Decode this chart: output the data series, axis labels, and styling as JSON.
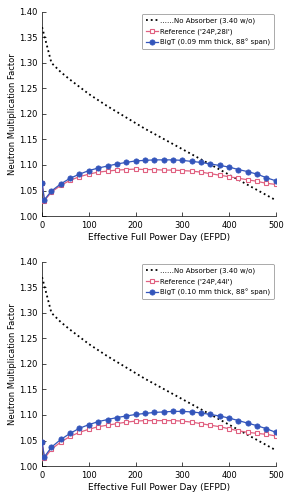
{
  "subplot1": {
    "no_absorber_x": [
      0,
      20,
      40,
      60,
      80,
      100,
      120,
      140,
      160,
      180,
      200,
      220,
      240,
      260,
      280,
      300,
      320,
      340,
      360,
      380,
      400,
      420,
      440,
      460,
      480,
      500
    ],
    "no_absorber_y": [
      1.37,
      1.3,
      1.282,
      1.267,
      1.253,
      1.239,
      1.227,
      1.215,
      1.204,
      1.193,
      1.182,
      1.171,
      1.161,
      1.151,
      1.141,
      1.131,
      1.121,
      1.111,
      1.101,
      1.091,
      1.081,
      1.071,
      1.061,
      1.051,
      1.041,
      1.031
    ],
    "reference_x": [
      0,
      5,
      20,
      40,
      60,
      80,
      100,
      120,
      140,
      160,
      180,
      200,
      220,
      240,
      260,
      280,
      300,
      320,
      340,
      360,
      380,
      400,
      420,
      440,
      460,
      480,
      500
    ],
    "reference_y": [
      1.065,
      1.03,
      1.047,
      1.06,
      1.07,
      1.077,
      1.082,
      1.086,
      1.088,
      1.09,
      1.091,
      1.092,
      1.091,
      1.091,
      1.09,
      1.09,
      1.089,
      1.088,
      1.086,
      1.083,
      1.08,
      1.077,
      1.074,
      1.071,
      1.068,
      1.064,
      1.062
    ],
    "bigt_x": [
      0,
      5,
      20,
      40,
      60,
      80,
      100,
      120,
      140,
      160,
      180,
      200,
      220,
      240,
      260,
      280,
      300,
      320,
      340,
      360,
      380,
      400,
      420,
      440,
      460,
      480,
      500
    ],
    "bigt_y": [
      1.065,
      1.032,
      1.049,
      1.063,
      1.074,
      1.082,
      1.089,
      1.094,
      1.098,
      1.102,
      1.105,
      1.108,
      1.109,
      1.11,
      1.11,
      1.11,
      1.109,
      1.107,
      1.105,
      1.102,
      1.099,
      1.096,
      1.091,
      1.087,
      1.082,
      1.075,
      1.069
    ],
    "ref_label": "Reference ('24P,28I')",
    "bigt_label": "BigT (0.09 mm thick, 88° span)"
  },
  "subplot2": {
    "no_absorber_x": [
      0,
      20,
      40,
      60,
      80,
      100,
      120,
      140,
      160,
      180,
      200,
      220,
      240,
      260,
      280,
      300,
      320,
      340,
      360,
      380,
      400,
      420,
      440,
      460,
      480,
      500
    ],
    "no_absorber_y": [
      1.37,
      1.3,
      1.282,
      1.267,
      1.253,
      1.239,
      1.227,
      1.215,
      1.204,
      1.193,
      1.182,
      1.171,
      1.161,
      1.151,
      1.141,
      1.131,
      1.121,
      1.111,
      1.101,
      1.091,
      1.081,
      1.071,
      1.061,
      1.051,
      1.041,
      1.031
    ],
    "reference_x": [
      0,
      5,
      20,
      40,
      60,
      80,
      100,
      120,
      140,
      160,
      180,
      200,
      220,
      240,
      260,
      280,
      300,
      320,
      340,
      360,
      380,
      400,
      420,
      440,
      460,
      480,
      500
    ],
    "reference_y": [
      1.047,
      1.015,
      1.033,
      1.047,
      1.058,
      1.066,
      1.072,
      1.077,
      1.08,
      1.083,
      1.086,
      1.088,
      1.089,
      1.089,
      1.089,
      1.089,
      1.088,
      1.086,
      1.083,
      1.08,
      1.077,
      1.073,
      1.069,
      1.066,
      1.064,
      1.062,
      1.059
    ],
    "bigt_x": [
      0,
      5,
      20,
      40,
      60,
      80,
      100,
      120,
      140,
      160,
      180,
      200,
      220,
      240,
      260,
      280,
      300,
      320,
      340,
      360,
      380,
      400,
      420,
      440,
      460,
      480,
      500
    ],
    "bigt_y": [
      1.047,
      1.018,
      1.037,
      1.052,
      1.064,
      1.074,
      1.081,
      1.087,
      1.091,
      1.095,
      1.098,
      1.101,
      1.103,
      1.105,
      1.106,
      1.107,
      1.107,
      1.106,
      1.104,
      1.101,
      1.098,
      1.094,
      1.089,
      1.084,
      1.079,
      1.073,
      1.066
    ],
    "ref_label": "Reference ('24P,44I')",
    "bigt_label": "BigT (0.10 mm thick, 88° span)"
  },
  "no_absorber_label": "No Absorber (3.40 w/o)",
  "ylabel": "Neutron Multiplication Factor",
  "xlabel": "Effective Full Power Day (EFPD)",
  "xlim": [
    0,
    500
  ],
  "ylim": [
    1.0,
    1.4
  ],
  "yticks": [
    1.0,
    1.05,
    1.1,
    1.15,
    1.2,
    1.25,
    1.3,
    1.35,
    1.4
  ],
  "xticks": [
    0,
    100,
    200,
    300,
    400,
    500
  ],
  "ref_color": "#e06080",
  "bigt_color": "#3355bb",
  "no_absorber_color": "#000000",
  "background_color": "#ffffff"
}
